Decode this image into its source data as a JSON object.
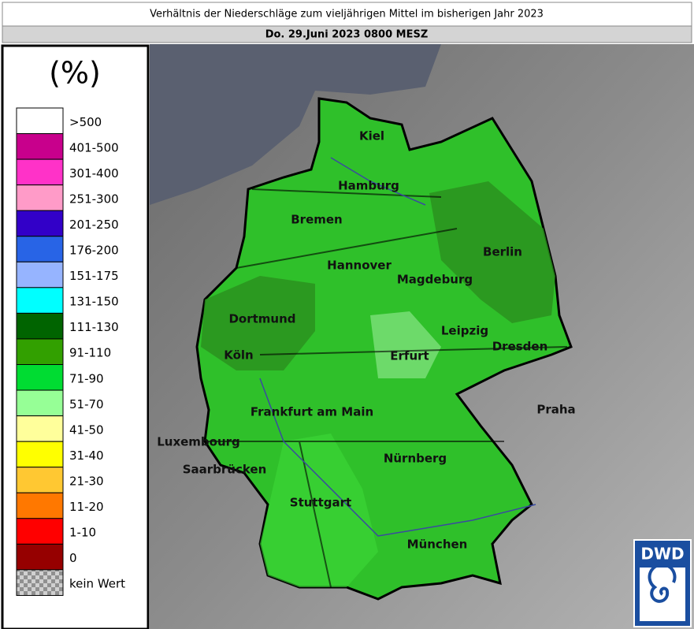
{
  "header": {
    "title": "Verhältnis der Niederschläge zum vieljährigen Mittel  im bisherigen Jahr 2023",
    "subtitle": "Do. 29.Juni 2023 0800 MESZ"
  },
  "legend": {
    "unit": "(%)",
    "items": [
      {
        "label": ">500",
        "color": "#ffffff"
      },
      {
        "label": "401-500",
        "color": "#c8008c"
      },
      {
        "label": "301-400",
        "color": "#ff32c8"
      },
      {
        "label": "251-300",
        "color": "#ff9bc8"
      },
      {
        "label": "201-250",
        "color": "#3200c8"
      },
      {
        "label": "176-200",
        "color": "#2864e6"
      },
      {
        "label": "151-175",
        "color": "#96b4ff"
      },
      {
        "label": "131-150",
        "color": "#00ffff"
      },
      {
        "label": "111-130",
        "color": "#006400"
      },
      {
        "label": "91-110",
        "color": "#32a000"
      },
      {
        "label": "71-90",
        "color": "#00dc32"
      },
      {
        "label": "51-70",
        "color": "#96ff96"
      },
      {
        "label": "41-50",
        "color": "#ffff9b"
      },
      {
        "label": "31-40",
        "color": "#ffff00"
      },
      {
        "label": "21-30",
        "color": "#ffc832"
      },
      {
        "label": "11-20",
        "color": "#ff7800"
      },
      {
        "label": "1-10",
        "color": "#ff0000"
      },
      {
        "label": "0",
        "color": "#960000"
      },
      {
        "label": "kein Wert",
        "color": "#a8a8a8"
      }
    ]
  },
  "cities": [
    "Kiel",
    "Hamburg",
    "Bremen",
    "Hannover",
    "Berlin",
    "Magdeburg",
    "Dortmund",
    "Leipzig",
    "Dresden",
    "Köln",
    "Erfurt",
    "Praha",
    "Frankfurt am Main",
    "Luxembourg",
    "Nürnberg",
    "Saarbrücken",
    "Stuttgart",
    "München"
  ],
  "logo": "DWD"
}
